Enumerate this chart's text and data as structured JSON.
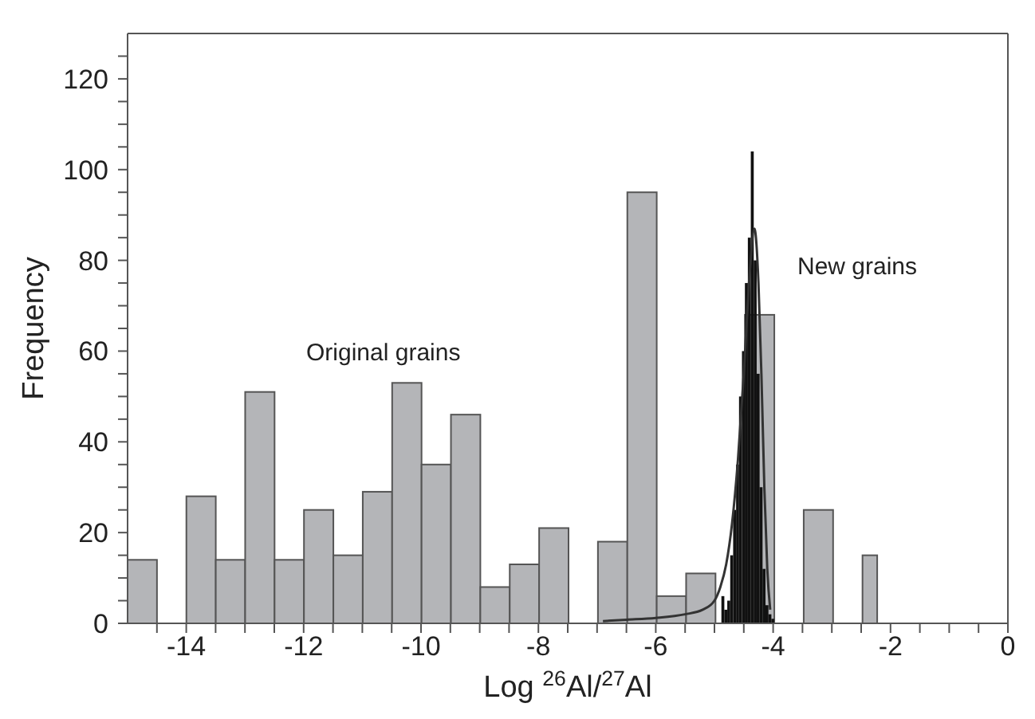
{
  "chart_data": {
    "type": "histogram",
    "xlabel": "Log $^{26}$Al/$^{27}$Al",
    "ylabel": "Frequency",
    "xlim": [
      -15,
      0
    ],
    "ylim": [
      0,
      130
    ],
    "xticks": [
      {
        "value": -14.5,
        "label": null
      },
      -14,
      {
        "value": -13.5,
        "label": null
      },
      {
        "value": -13,
        "label": null
      },
      {
        "value": -12.5,
        "label": null
      },
      -12,
      {
        "value": -11.5,
        "label": null
      },
      {
        "value": -11,
        "label": null
      },
      {
        "value": -10.5,
        "label": null
      },
      -10,
      {
        "value": -9.5,
        "label": null
      },
      {
        "value": -9,
        "label": null
      },
      {
        "value": -8.5,
        "label": null
      },
      -8,
      {
        "value": -7.5,
        "label": null
      },
      {
        "value": -7,
        "label": null
      },
      {
        "value": -6.5,
        "label": null
      },
      -6,
      {
        "value": -5.5,
        "label": null
      },
      {
        "value": -5,
        "label": null
      },
      {
        "value": -4.5,
        "label": null
      },
      -4,
      {
        "value": -3.5,
        "label": null
      },
      {
        "value": -3,
        "label": null
      },
      {
        "value": -2.5,
        "label": null
      },
      -2,
      {
        "value": -1.5,
        "label": null
      },
      {
        "value": -1,
        "label": null
      },
      {
        "value": -0.5,
        "label": null
      },
      0
    ],
    "yticks": [
      0,
      {
        "value": 5,
        "label": null
      },
      {
        "value": 10,
        "label": null
      },
      {
        "value": 15,
        "label": null
      },
      20,
      {
        "value": 25,
        "label": null
      },
      {
        "value": 30,
        "label": null
      },
      {
        "value": 35,
        "label": null
      },
      40,
      {
        "value": 45,
        "label": null
      },
      {
        "value": 50,
        "label": null
      },
      {
        "value": 55,
        "label": null
      },
      60,
      {
        "value": 65,
        "label": null
      },
      {
        "value": 70,
        "label": null
      },
      {
        "value": 75,
        "label": null
      },
      80,
      {
        "value": 85,
        "label": null
      },
      {
        "value": 90,
        "label": null
      },
      {
        "value": 95,
        "label": null
      },
      100,
      {
        "value": 105,
        "label": null
      },
      {
        "value": 110,
        "label": null
      },
      {
        "value": 115,
        "label": null
      },
      120,
      {
        "value": 125,
        "label": null
      }
    ],
    "series": [
      {
        "color": "#b4b5b8",
        "bins": [
          -15,
          -14.5,
          -14,
          -13.5,
          -13,
          -12.5,
          -12,
          -11.5,
          -11,
          -10.5,
          -10,
          -9.5,
          -9,
          -8.5,
          -8,
          -7.5,
          -7,
          -6.5,
          -6,
          -5.5,
          -5,
          -4.5,
          -4,
          -3.5,
          -3,
          -2.5,
          -2.25
        ],
        "values": [
          14,
          0,
          28,
          14,
          51,
          14,
          25,
          15,
          29,
          53,
          35,
          46,
          8,
          13,
          21,
          0,
          18,
          95,
          6,
          11,
          null,
          68,
          0,
          25,
          0,
          15
        ]
      },
      {
        "color": "#111111",
        "bins": [
          -4.9,
          -4.85,
          -4.8,
          -4.75,
          -4.7,
          -4.65,
          -4.6,
          -4.55,
          -4.5,
          -4.45,
          -4.4,
          -4.35,
          -4.3,
          -4.25,
          -4.2,
          -4.15,
          -4.1,
          -4.05,
          -4
        ],
        "values": [
          6,
          3,
          5,
          15,
          25,
          35,
          50,
          60,
          75,
          85,
          104,
          80,
          55,
          30,
          12,
          4,
          2,
          1
        ]
      },
      {
        "type": "line",
        "color": "#333333",
        "x": [
          -6.9,
          -6.5,
          -6,
          -5.5,
          -5.2,
          -5,
          -4.9,
          -4.8,
          -4.7,
          -4.6,
          -4.5,
          -4.4,
          -4.32,
          -4.25,
          -4.2,
          -4.15,
          -4.1,
          -4.05
        ],
        "values": [
          0.5,
          0.8,
          1.2,
          2,
          3,
          5,
          8,
          13,
          22,
          36,
          55,
          77,
          87,
          75,
          55,
          30,
          12,
          3
        ]
      }
    ],
    "annotations": [
      "Original grains",
      "New grains"
    ]
  }
}
